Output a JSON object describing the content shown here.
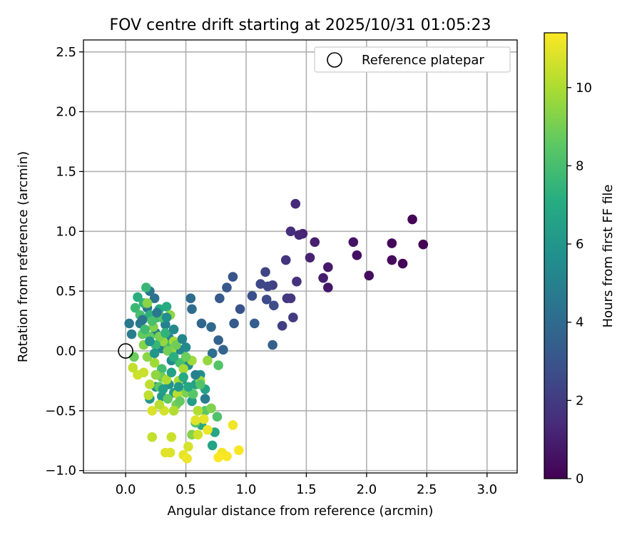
{
  "chart_data": {
    "type": "scatter",
    "title": "FOV centre drift starting at 2025/10/31 01:05:23",
    "xlabel": "Angular distance from reference (arcmin)",
    "ylabel": "Rotation from reference (arcmin)",
    "xlim": [
      -0.35,
      3.25
    ],
    "ylim": [
      -1.02,
      2.6
    ],
    "xticks": [
      0.0,
      0.5,
      1.0,
      1.5,
      2.0,
      2.5,
      3.0
    ],
    "xtick_labels": [
      "0.0",
      "0.5",
      "1.0",
      "1.5",
      "2.0",
      "2.5",
      "3.0"
    ],
    "yticks": [
      -1.0,
      -0.5,
      0.0,
      0.5,
      1.0,
      1.5,
      2.0,
      2.5
    ],
    "ytick_labels": [
      "−1.0",
      "−0.5",
      "0.0",
      "0.5",
      "1.0",
      "1.5",
      "2.0",
      "2.5"
    ],
    "grid": true,
    "legend": {
      "position": "top-right",
      "entries": [
        {
          "label": "Reference platepar",
          "marker": "open-circle"
        }
      ]
    },
    "reference_point": {
      "x": 0.0,
      "y": 0.0
    },
    "colorbar": {
      "label": "Hours from first FF file",
      "colormap": "viridis",
      "range": [
        0,
        11.4
      ],
      "ticks": [
        0,
        2,
        4,
        6,
        8,
        10
      ],
      "tick_labels": [
        "0",
        "2",
        "4",
        "6",
        "8",
        "10"
      ]
    },
    "points": [
      {
        "x": 2.3,
        "y": 0.73,
        "h": 0.1
      },
      {
        "x": 2.47,
        "y": 0.89,
        "h": 0.0
      },
      {
        "x": 2.38,
        "y": 1.1,
        "h": 0.1
      },
      {
        "x": 2.21,
        "y": 0.9,
        "h": 0.2
      },
      {
        "x": 2.21,
        "y": 0.76,
        "h": 0.3
      },
      {
        "x": 2.02,
        "y": 0.63,
        "h": 0.4
      },
      {
        "x": 1.92,
        "y": 0.8,
        "h": 0.5
      },
      {
        "x": 1.89,
        "y": 0.91,
        "h": 0.6
      },
      {
        "x": 1.68,
        "y": 0.53,
        "h": 0.7
      },
      {
        "x": 1.68,
        "y": 0.7,
        "h": 0.8
      },
      {
        "x": 1.64,
        "y": 0.61,
        "h": 0.9
      },
      {
        "x": 1.57,
        "y": 0.91,
        "h": 1.0
      },
      {
        "x": 1.53,
        "y": 0.78,
        "h": 1.1
      },
      {
        "x": 1.47,
        "y": 0.98,
        "h": 1.2
      },
      {
        "x": 1.44,
        "y": 0.97,
        "h": 1.3
      },
      {
        "x": 1.41,
        "y": 1.23,
        "h": 1.4
      },
      {
        "x": 1.37,
        "y": 1.0,
        "h": 1.5
      },
      {
        "x": 1.42,
        "y": 0.58,
        "h": 1.6
      },
      {
        "x": 1.33,
        "y": 0.76,
        "h": 1.7
      },
      {
        "x": 1.37,
        "y": 0.44,
        "h": 1.8
      },
      {
        "x": 1.34,
        "y": 0.44,
        "h": 1.9
      },
      {
        "x": 1.39,
        "y": 0.28,
        "h": 2.0
      },
      {
        "x": 1.3,
        "y": 0.21,
        "h": 2.1
      },
      {
        "x": 1.22,
        "y": 0.55,
        "h": 2.2
      },
      {
        "x": 1.16,
        "y": 0.66,
        "h": 2.3
      },
      {
        "x": 1.18,
        "y": 0.54,
        "h": 2.4
      },
      {
        "x": 1.12,
        "y": 0.56,
        "h": 2.5
      },
      {
        "x": 1.17,
        "y": 0.43,
        "h": 2.6
      },
      {
        "x": 1.23,
        "y": 0.38,
        "h": 2.7
      },
      {
        "x": 1.05,
        "y": 0.46,
        "h": 2.8
      },
      {
        "x": 0.95,
        "y": 0.35,
        "h": 2.9
      },
      {
        "x": 0.89,
        "y": 0.62,
        "h": 3.0
      },
      {
        "x": 0.84,
        "y": 0.53,
        "h": 3.1
      },
      {
        "x": 0.78,
        "y": 0.44,
        "h": 3.2
      },
      {
        "x": 0.9,
        "y": 0.23,
        "h": 3.3
      },
      {
        "x": 1.07,
        "y": 0.23,
        "h": 3.4
      },
      {
        "x": 1.22,
        "y": 0.05,
        "h": 3.5
      },
      {
        "x": 0.77,
        "y": 0.09,
        "h": 3.6
      },
      {
        "x": 0.81,
        "y": 0.01,
        "h": 3.7
      },
      {
        "x": 0.63,
        "y": 0.23,
        "h": 3.8
      },
      {
        "x": 0.71,
        "y": 0.2,
        "h": 3.9
      },
      {
        "x": 0.54,
        "y": 0.44,
        "h": 4.0
      },
      {
        "x": 0.55,
        "y": 0.35,
        "h": 4.1
      },
      {
        "x": 0.72,
        "y": -0.02,
        "h": 4.2
      },
      {
        "x": 0.24,
        "y": 0.44,
        "h": 4.3
      },
      {
        "x": 0.2,
        "y": 0.5,
        "h": 4.4
      },
      {
        "x": 0.18,
        "y": 0.36,
        "h": 4.5
      },
      {
        "x": 0.03,
        "y": 0.23,
        "h": 4.6
      },
      {
        "x": 0.12,
        "y": 0.23,
        "h": 4.7
      },
      {
        "x": 0.05,
        "y": 0.14,
        "h": 4.8
      },
      {
        "x": 0.25,
        "y": 0.15,
        "h": 4.9
      },
      {
        "x": 0.33,
        "y": 0.22,
        "h": 5.0
      },
      {
        "x": 0.36,
        "y": 0.11,
        "h": 5.1
      },
      {
        "x": 0.3,
        "y": 0.02,
        "h": 5.2
      },
      {
        "x": 0.45,
        "y": 0.01,
        "h": 5.3
      },
      {
        "x": 0.5,
        "y": 0.03,
        "h": 5.4
      },
      {
        "x": 0.38,
        "y": -0.08,
        "h": 5.5
      },
      {
        "x": 0.52,
        "y": -0.12,
        "h": 5.6
      },
      {
        "x": 0.62,
        "y": -0.2,
        "h": 5.7
      },
      {
        "x": 0.47,
        "y": -0.24,
        "h": 5.8
      },
      {
        "x": 0.36,
        "y": -0.28,
        "h": 5.9
      },
      {
        "x": 0.25,
        "y": -0.3,
        "h": 6.0
      },
      {
        "x": 0.2,
        "y": -0.4,
        "h": 6.1
      },
      {
        "x": 0.3,
        "y": -0.38,
        "h": 6.2
      },
      {
        "x": 0.4,
        "y": -0.35,
        "h": 6.3
      },
      {
        "x": 0.55,
        "y": -0.42,
        "h": 6.4
      },
      {
        "x": 0.58,
        "y": -0.28,
        "h": 6.5
      },
      {
        "x": 0.66,
        "y": -0.32,
        "h": 6.6
      },
      {
        "x": 0.72,
        "y": -0.79,
        "h": 6.7
      },
      {
        "x": 0.74,
        "y": -0.68,
        "h": 6.8
      },
      {
        "x": 0.63,
        "y": -0.62,
        "h": 6.9
      },
      {
        "x": 0.28,
        "y": 0.35,
        "h": 7.0
      },
      {
        "x": 0.34,
        "y": 0.37,
        "h": 7.1
      },
      {
        "x": 0.1,
        "y": 0.45,
        "h": 7.2
      },
      {
        "x": 0.2,
        "y": 0.3,
        "h": 7.3
      },
      {
        "x": 0.15,
        "y": 0.4,
        "h": 7.4
      },
      {
        "x": 0.26,
        "y": 0.28,
        "h": 7.5
      },
      {
        "x": 0.17,
        "y": 0.53,
        "h": 7.6
      },
      {
        "x": 0.08,
        "y": 0.36,
        "h": 7.7
      },
      {
        "x": 0.35,
        "y": 0.05,
        "h": 7.8
      },
      {
        "x": 0.3,
        "y": -0.15,
        "h": 7.9
      },
      {
        "x": 0.45,
        "y": -0.1,
        "h": 8.0
      },
      {
        "x": 0.6,
        "y": -0.5,
        "h": 8.1
      },
      {
        "x": 0.76,
        "y": -0.55,
        "h": 8.2
      },
      {
        "x": 0.77,
        "y": -0.12,
        "h": 8.3
      },
      {
        "x": 0.58,
        "y": -0.6,
        "h": 8.4
      },
      {
        "x": 0.66,
        "y": -0.5,
        "h": 8.5
      },
      {
        "x": 0.2,
        "y": 0.12,
        "h": 8.6
      },
      {
        "x": 0.14,
        "y": 0.14,
        "h": 8.7
      },
      {
        "x": 0.07,
        "y": -0.05,
        "h": 8.8
      },
      {
        "x": 0.3,
        "y": -0.22,
        "h": 8.9
      },
      {
        "x": 0.42,
        "y": -0.45,
        "h": 9.0
      },
      {
        "x": 0.5,
        "y": -0.35,
        "h": 9.1
      },
      {
        "x": 0.71,
        "y": -0.48,
        "h": 9.2
      },
      {
        "x": 0.55,
        "y": -0.7,
        "h": 9.3
      },
      {
        "x": 0.18,
        "y": 0.4,
        "h": 9.4
      },
      {
        "x": 0.37,
        "y": 0.3,
        "h": 9.5
      },
      {
        "x": 0.31,
        "y": 0.08,
        "h": 9.6
      },
      {
        "x": 0.38,
        "y": 0.0,
        "h": 9.7
      },
      {
        "x": 0.24,
        "y": -0.1,
        "h": 9.8
      },
      {
        "x": 0.4,
        "y": 0.08,
        "h": 9.9
      },
      {
        "x": 0.34,
        "y": -0.24,
        "h": 10.0
      },
      {
        "x": 0.6,
        "y": -0.5,
        "h": 10.1
      },
      {
        "x": 0.43,
        "y": -0.36,
        "h": 10.2
      },
      {
        "x": 0.19,
        "y": -0.37,
        "h": 10.3
      },
      {
        "x": 0.22,
        "y": -0.72,
        "h": 10.4
      },
      {
        "x": 0.38,
        "y": -0.72,
        "h": 10.5
      },
      {
        "x": 0.6,
        "y": -0.7,
        "h": 10.6
      },
      {
        "x": 0.52,
        "y": -0.8,
        "h": 10.7
      },
      {
        "x": 0.37,
        "y": -0.85,
        "h": 10.8
      },
      {
        "x": 0.33,
        "y": -0.85,
        "h": 10.9
      },
      {
        "x": 0.48,
        "y": -0.87,
        "h": 11.0
      },
      {
        "x": 0.51,
        "y": -0.9,
        "h": 11.1
      },
      {
        "x": 0.8,
        "y": -0.85,
        "h": 11.2
      },
      {
        "x": 0.84,
        "y": -0.88,
        "h": 11.3
      },
      {
        "x": 0.77,
        "y": -0.89,
        "h": 11.4
      },
      {
        "x": 0.94,
        "y": -0.83,
        "h": 11.3
      },
      {
        "x": 0.89,
        "y": -0.62,
        "h": 11.2
      },
      {
        "x": 0.68,
        "y": -0.66,
        "h": 11.1
      },
      {
        "x": 0.65,
        "y": -0.57,
        "h": 11.0
      },
      {
        "x": 0.58,
        "y": -0.58,
        "h": 10.9
      },
      {
        "x": 0.22,
        "y": -0.5,
        "h": 10.8
      },
      {
        "x": 0.32,
        "y": -0.5,
        "h": 10.7
      },
      {
        "x": 0.1,
        "y": -0.2,
        "h": 10.6
      },
      {
        "x": 0.15,
        "y": -0.18,
        "h": 10.5
      },
      {
        "x": 0.06,
        "y": -0.14,
        "h": 10.4
      },
      {
        "x": 0.2,
        "y": -0.28,
        "h": 10.3
      },
      {
        "x": 0.28,
        "y": -0.45,
        "h": 10.2
      },
      {
        "x": 0.4,
        "y": -0.5,
        "h": 10.1
      },
      {
        "x": 0.44,
        "y": -0.25,
        "h": 10.0
      },
      {
        "x": 0.48,
        "y": -0.15,
        "h": 9.9
      },
      {
        "x": 0.55,
        "y": -0.08,
        "h": 9.8
      },
      {
        "x": 0.62,
        "y": -0.25,
        "h": 9.7
      },
      {
        "x": 0.68,
        "y": -0.08,
        "h": 9.6
      },
      {
        "x": 0.25,
        "y": -0.2,
        "h": 9.5
      },
      {
        "x": 0.18,
        "y": -0.05,
        "h": 9.4
      },
      {
        "x": 0.15,
        "y": 0.05,
        "h": 9.3
      },
      {
        "x": 0.23,
        "y": 0.2,
        "h": 9.2
      },
      {
        "x": 0.28,
        "y": 0.12,
        "h": 9.1
      },
      {
        "x": 0.35,
        "y": 0.0,
        "h": 9.0
      },
      {
        "x": 0.42,
        "y": 0.05,
        "h": 8.9
      },
      {
        "x": 0.5,
        "y": -0.05,
        "h": 8.8
      },
      {
        "x": 0.45,
        "y": -0.42,
        "h": 8.7
      },
      {
        "x": 0.35,
        "y": -0.4,
        "h": 8.6
      },
      {
        "x": 0.28,
        "y": -0.3,
        "h": 8.5
      },
      {
        "x": 0.56,
        "y": -0.36,
        "h": 8.4
      },
      {
        "x": 0.62,
        "y": -0.28,
        "h": 8.3
      },
      {
        "x": 0.3,
        "y": 0.28,
        "h": 8.2
      },
      {
        "x": 0.22,
        "y": 0.25,
        "h": 8.1
      },
      {
        "x": 0.12,
        "y": 0.3,
        "h": 8.0
      },
      {
        "x": 0.16,
        "y": 0.18,
        "h": 7.8
      },
      {
        "x": 0.25,
        "y": 0.05,
        "h": 7.6
      },
      {
        "x": 0.33,
        "y": 0.15,
        "h": 7.4
      },
      {
        "x": 0.4,
        "y": -0.05,
        "h": 7.2
      },
      {
        "x": 0.48,
        "y": -0.22,
        "h": 7.0
      },
      {
        "x": 0.52,
        "y": -0.3,
        "h": 6.8
      },
      {
        "x": 0.38,
        "y": -0.18,
        "h": 6.6
      },
      {
        "x": 0.31,
        "y": -0.32,
        "h": 6.4
      },
      {
        "x": 0.44,
        "y": -0.3,
        "h": 6.2
      },
      {
        "x": 0.24,
        "y": -0.02,
        "h": 6.0
      },
      {
        "x": 0.2,
        "y": 0.08,
        "h": 5.8
      },
      {
        "x": 0.34,
        "y": 0.28,
        "h": 5.6
      },
      {
        "x": 0.4,
        "y": 0.18,
        "h": 5.4
      },
      {
        "x": 0.47,
        "y": 0.1,
        "h": 5.2
      },
      {
        "x": 0.58,
        "y": -0.2,
        "h": 5.0
      },
      {
        "x": 0.66,
        "y": -0.4,
        "h": 4.8
      },
      {
        "x": 0.26,
        "y": 0.32,
        "h": 4.6
      },
      {
        "x": 0.14,
        "y": 0.26,
        "h": 4.4
      }
    ]
  }
}
